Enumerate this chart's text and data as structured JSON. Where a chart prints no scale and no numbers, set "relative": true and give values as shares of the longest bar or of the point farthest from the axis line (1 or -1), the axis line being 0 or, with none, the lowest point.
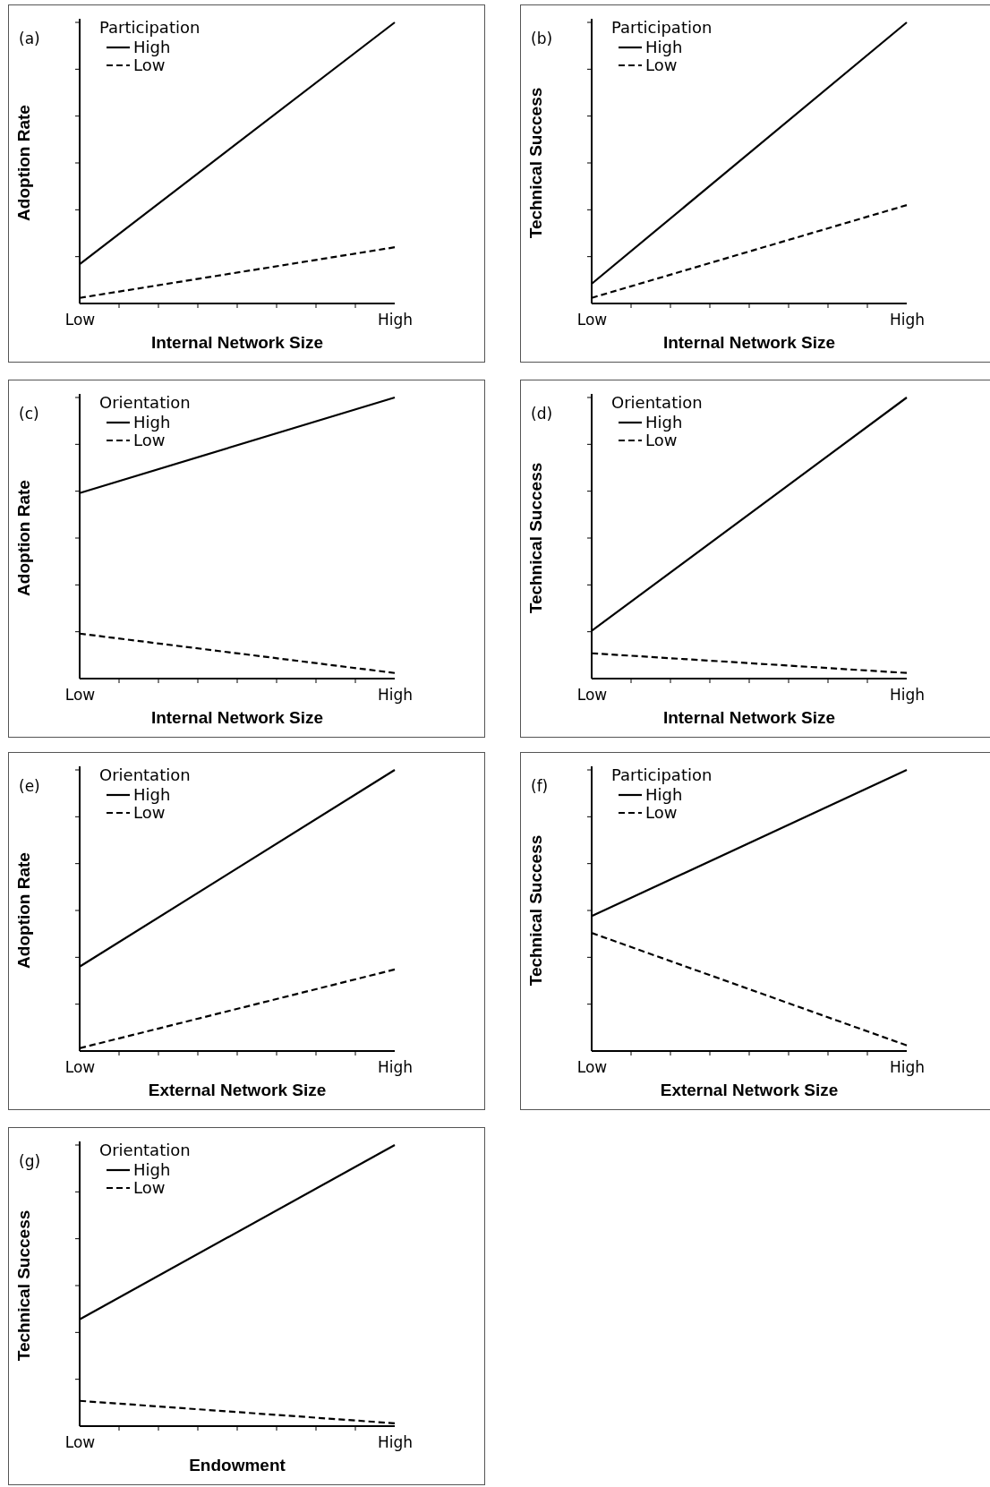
{
  "chart_data": [
    {
      "type": "line",
      "title": "(a)",
      "ylabel": "Adoption Rate",
      "xlabel": "Internal Network Size",
      "legend_title": "Participation",
      "legend": "top left",
      "relative": true,
      "categories": [
        "Low",
        "High"
      ],
      "series": [
        {
          "name": "High",
          "color": "#000000",
          "line_style": "solid",
          "values": [
            0.14,
            1
          ]
        },
        {
          "name": "Low",
          "color": "#000000",
          "line_style": "dashed",
          "values": [
            0.02,
            0.2
          ]
        }
      ]
    },
    {
      "type": "line",
      "title": "(b)",
      "ylabel": "Technical Success",
      "xlabel": "Internal Network Size",
      "legend_title": "Participation",
      "legend": "top left",
      "relative": true,
      "categories": [
        "Low",
        "High"
      ],
      "series": [
        {
          "name": "High",
          "color": "#000000",
          "line_style": "solid",
          "values": [
            0.07,
            1
          ]
        },
        {
          "name": "Low",
          "color": "#000000",
          "line_style": "dashed",
          "values": [
            0.02,
            0.35
          ]
        }
      ]
    },
    {
      "type": "line",
      "title": "(c)",
      "ylabel": "Adoption Rate",
      "xlabel": "Internal Network Size",
      "legend_title": "Orientation",
      "legend": "top left",
      "relative": true,
      "categories": [
        "Low",
        "High"
      ],
      "series": [
        {
          "name": "High",
          "color": "#000000",
          "line_style": "solid",
          "values": [
            0.66,
            1
          ]
        },
        {
          "name": "Low",
          "color": "#000000",
          "line_style": "dashed",
          "values": [
            0.16,
            0.02
          ]
        }
      ]
    },
    {
      "type": "line",
      "title": "(d)",
      "ylabel": "Technical Success",
      "xlabel": "Internal Network Size",
      "legend_title": "Orientation",
      "legend": "top left",
      "relative": true,
      "categories": [
        "Low",
        "High"
      ],
      "series": [
        {
          "name": "High",
          "color": "#000000",
          "line_style": "solid",
          "values": [
            0.17,
            1
          ]
        },
        {
          "name": "Low",
          "color": "#000000",
          "line_style": "dashed",
          "values": [
            0.09,
            0.02
          ]
        }
      ]
    },
    {
      "type": "line",
      "title": "(e)",
      "ylabel": "Adoption Rate",
      "xlabel": "External Network Size",
      "legend_title": "Orientation",
      "legend": "top left",
      "relative": true,
      "categories": [
        "Low",
        "High"
      ],
      "series": [
        {
          "name": "High",
          "color": "#000000",
          "line_style": "solid",
          "values": [
            0.3,
            1
          ]
        },
        {
          "name": "Low",
          "color": "#000000",
          "line_style": "dashed",
          "values": [
            0.01,
            0.29
          ]
        }
      ]
    },
    {
      "type": "line",
      "title": "(f)",
      "ylabel": "Technical Success",
      "xlabel": "External Network Size",
      "legend_title": "Participation",
      "legend": "top left",
      "relative": true,
      "categories": [
        "Low",
        "High"
      ],
      "series": [
        {
          "name": "High",
          "color": "#000000",
          "line_style": "solid",
          "values": [
            0.48,
            1
          ]
        },
        {
          "name": "Low",
          "color": "#000000",
          "line_style": "dashed",
          "values": [
            0.42,
            0.02
          ]
        }
      ]
    },
    {
      "type": "line",
      "title": "(g)",
      "ylabel": "Technical Success",
      "xlabel": "Endowment",
      "legend_title": "Orientation",
      "legend": "top left",
      "relative": true,
      "categories": [
        "Low",
        "High"
      ],
      "series": [
        {
          "name": "High",
          "color": "#000000",
          "line_style": "solid",
          "values": [
            0.38,
            1
          ]
        },
        {
          "name": "Low",
          "color": "#000000",
          "line_style": "dashed",
          "values": [
            0.09,
            0.01
          ]
        }
      ]
    }
  ]
}
